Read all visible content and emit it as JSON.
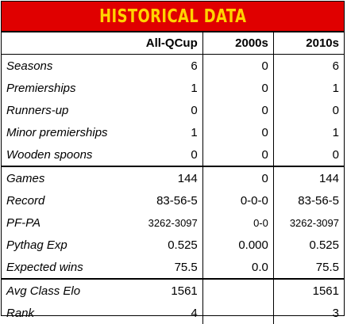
{
  "title": "HISTORICAL DATA",
  "columns": [
    "All-QCup",
    "2000s",
    "2010s"
  ],
  "rows": [
    {
      "label": "Seasons",
      "values": [
        "6",
        "0",
        "6"
      ]
    },
    {
      "label": "Premierships",
      "values": [
        "1",
        "0",
        "1"
      ]
    },
    {
      "label": "Runners-up",
      "values": [
        "0",
        "0",
        "0"
      ]
    },
    {
      "label": "Minor premierships",
      "values": [
        "1",
        "0",
        "1"
      ]
    },
    {
      "label": "Wooden spoons",
      "values": [
        "0",
        "0",
        "0"
      ]
    },
    {
      "label": "Games",
      "values": [
        "144",
        "0",
        "144"
      ]
    },
    {
      "label": "Record",
      "values": [
        "83-56-5",
        "0-0-0",
        "83-56-5"
      ]
    },
    {
      "label": "PF-PA",
      "values": [
        "3262-3097",
        "0-0",
        "3262-3097"
      ]
    },
    {
      "label": "Pythag Exp",
      "values": [
        "0.525",
        "0.000",
        "0.525"
      ]
    },
    {
      "label": "Expected wins",
      "values": [
        "75.5",
        "0.0",
        "75.5"
      ]
    },
    {
      "label": "Avg Class Elo",
      "values": [
        "1561",
        "",
        "1561"
      ]
    },
    {
      "label": "Rank",
      "values": [
        "4",
        "",
        "3"
      ]
    }
  ],
  "colors": {
    "banner": "#e00000",
    "title": "#ffd400"
  }
}
